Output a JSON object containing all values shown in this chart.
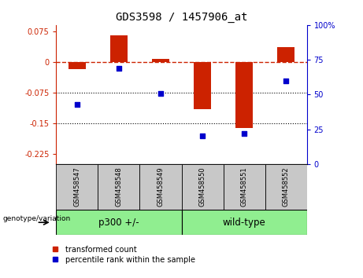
{
  "title": "GDS3598 / 1457906_at",
  "samples": [
    "GSM458547",
    "GSM458548",
    "GSM458549",
    "GSM458550",
    "GSM458551",
    "GSM458552"
  ],
  "red_values": [
    -0.018,
    0.065,
    0.008,
    -0.115,
    -0.162,
    0.035
  ],
  "blue_values": [
    43,
    69,
    51,
    20,
    22,
    60
  ],
  "ylim_left": [
    -0.25,
    0.09
  ],
  "ylim_right": [
    0,
    100
  ],
  "yticks_left": [
    0.075,
    0,
    -0.075,
    -0.15,
    -0.225
  ],
  "yticks_right": [
    100,
    75,
    50,
    25,
    0
  ],
  "red_color": "#cc2200",
  "blue_color": "#0000cc",
  "dotted_lines": [
    -0.075,
    -0.15
  ],
  "group1_label": "p300 +/-",
  "group2_label": "wild-type",
  "group_bg_color": "#90ee90",
  "sample_bg_color": "#c8c8c8",
  "xlabel_label": "genotype/variation",
  "legend_red": "transformed count",
  "legend_blue": "percentile rank within the sample",
  "bar_width": 0.4
}
